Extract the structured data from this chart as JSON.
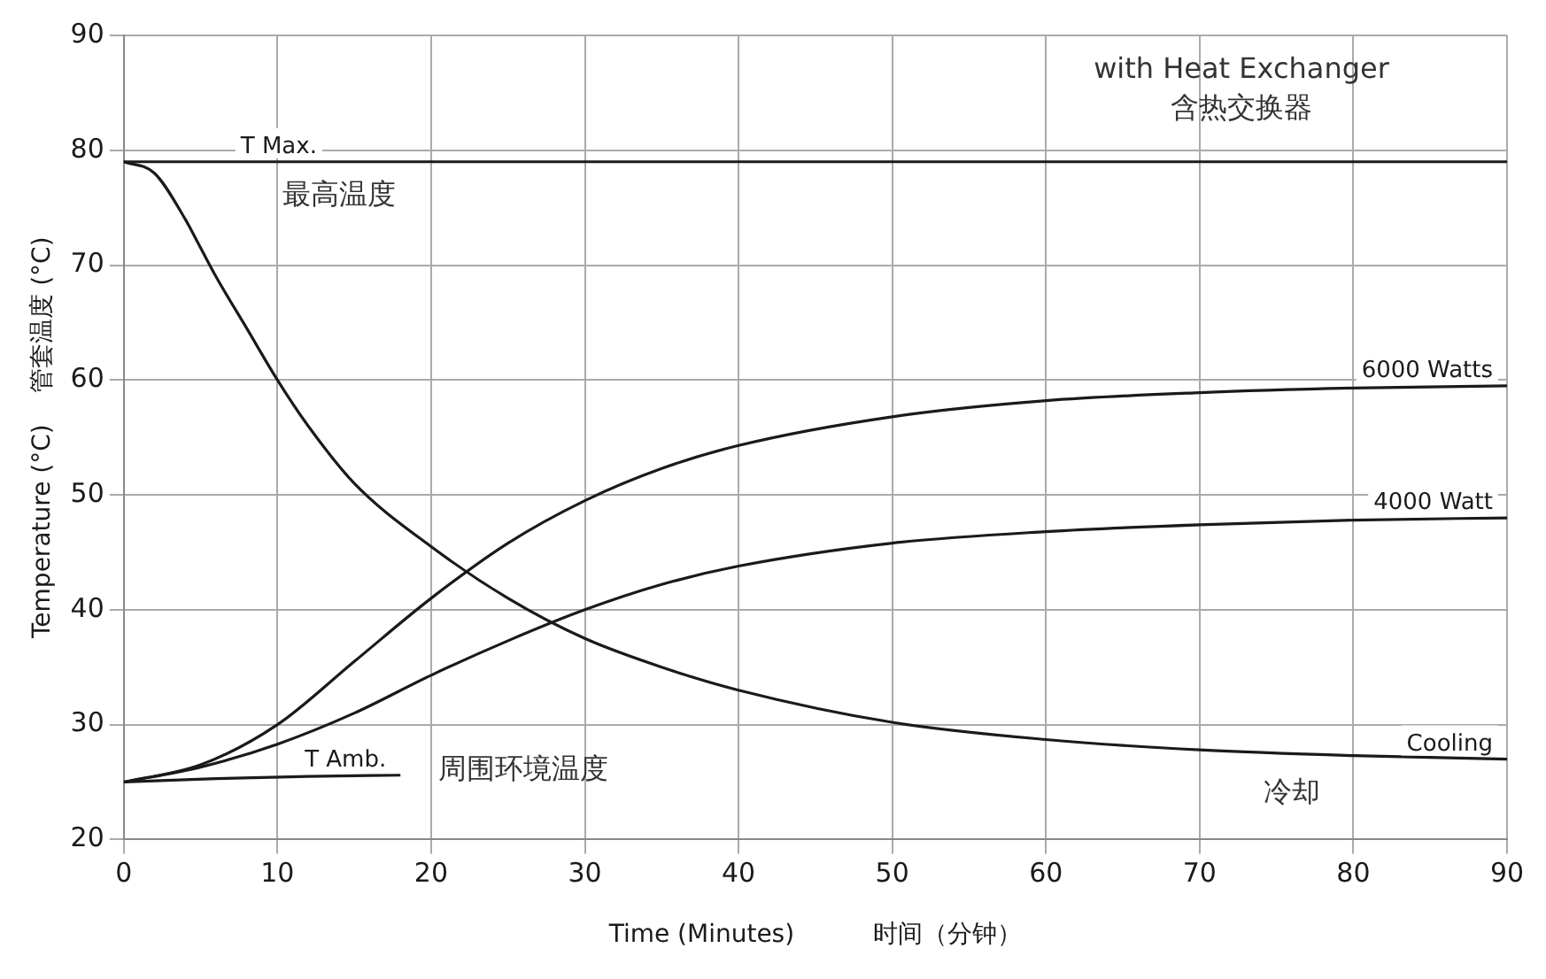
{
  "chart_data": {
    "type": "line",
    "xlabel": "Time (Minutes)          时间（分钟）",
    "ylabel": "Temperature (°C)    管套温度 (°C)",
    "xlim": [
      0,
      90
    ],
    "xticks": [
      0,
      10,
      20,
      30,
      40,
      50,
      60,
      70,
      80,
      90
    ],
    "ylim": [
      20,
      90
    ],
    "yticks": [
      20,
      30,
      40,
      50,
      60,
      70,
      80,
      90
    ],
    "grid": true,
    "legend": false,
    "marker": "none",
    "line_style": "solid",
    "series": [
      {
        "name": "6000 Watts",
        "color": "#1a1a1a",
        "x": [
          0,
          5,
          10,
          15,
          20,
          25,
          30,
          35,
          40,
          50,
          60,
          70,
          80,
          90
        ],
        "values": [
          25,
          26.5,
          30,
          35.5,
          41,
          45.8,
          49.5,
          52.3,
          54.3,
          56.8,
          58.2,
          58.9,
          59.3,
          59.5
        ]
      },
      {
        "name": "4000 Watt",
        "color": "#1a1a1a",
        "x": [
          0,
          5,
          10,
          15,
          20,
          25,
          30,
          35,
          40,
          50,
          60,
          70,
          80,
          90
        ],
        "values": [
          25,
          26.3,
          28.3,
          31,
          34.3,
          37.3,
          40,
          42.2,
          43.8,
          45.8,
          46.8,
          47.4,
          47.8,
          48
        ]
      },
      {
        "name": "Cooling",
        "color": "#1a1a1a",
        "x": [
          0,
          2,
          4,
          5,
          6,
          8,
          10,
          12,
          15,
          20,
          25,
          30,
          35,
          40,
          50,
          60,
          70,
          80,
          90
        ],
        "values": [
          79,
          78,
          74,
          71.5,
          69,
          64.5,
          60,
          56,
          51,
          45.5,
          41,
          37.5,
          35,
          33,
          30.2,
          28.7,
          27.8,
          27.3,
          27
        ]
      },
      {
        "name": "T Amb.",
        "color": "#1a1a1a",
        "x": [
          0,
          6,
          12,
          18
        ],
        "values": [
          25,
          25.3,
          25.5,
          25.6
        ]
      }
    ],
    "ref_lines": [
      {
        "axis": "y",
        "value": 79,
        "label": "T Max.",
        "color": "#1a1a1a"
      }
    ],
    "annotations": [
      "with Heat Exchanger",
      "含热交换器",
      "最高温度",
      "周围环境温度",
      "冷却"
    ]
  }
}
